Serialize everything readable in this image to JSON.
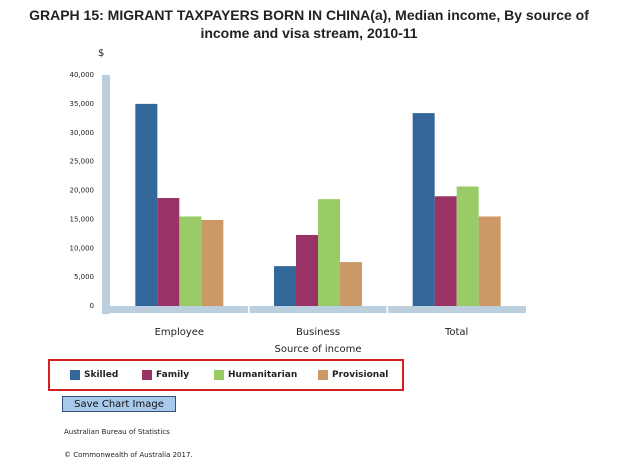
{
  "page_title": "GRAPH 15: MIGRANT TAXPAYERS BORN IN CHINA(a), Median income, By source of income and visa stream, 2010-11",
  "chart_data": {
    "type": "bar",
    "title": "GRAPH 15: MIGRANT TAXPAYERS BORN IN CHINA(a), Median income, By source of income and visa stream, 2010-11",
    "xlabel": "Source of income",
    "ylabel": "$",
    "ylim": [
      0,
      40000
    ],
    "yticks": [
      0,
      5000,
      10000,
      15000,
      20000,
      25000,
      30000,
      35000,
      40000
    ],
    "ytick_labels": [
      "0",
      "5,000",
      "10,000",
      "15,000",
      "20,000",
      "25,000",
      "30,000",
      "35,000",
      "40,000"
    ],
    "categories": [
      "Employee",
      "Business",
      "Total"
    ],
    "series": [
      {
        "name": "Skilled",
        "color": "#336699",
        "values": [
          35000,
          6900,
          33400
        ]
      },
      {
        "name": "Family",
        "color": "#993366",
        "values": [
          18700,
          12300,
          19000
        ]
      },
      {
        "name": "Humanitarian",
        "color": "#99cc66",
        "values": [
          15500,
          18500,
          20700
        ]
      },
      {
        "name": "Provisional",
        "color": "#cc9966",
        "values": [
          14900,
          7600,
          15500
        ]
      }
    ],
    "grid": false,
    "legend": "bottom"
  },
  "save_button_label": "Save Chart Image",
  "footer": {
    "source": "Australian Bureau of Statistics",
    "copyright": "© Commonwealth of Australia 2017."
  },
  "colors": {
    "axis": "#bccfde",
    "legend_border": "#d42020",
    "button_bg": "#a8c8ec"
  }
}
